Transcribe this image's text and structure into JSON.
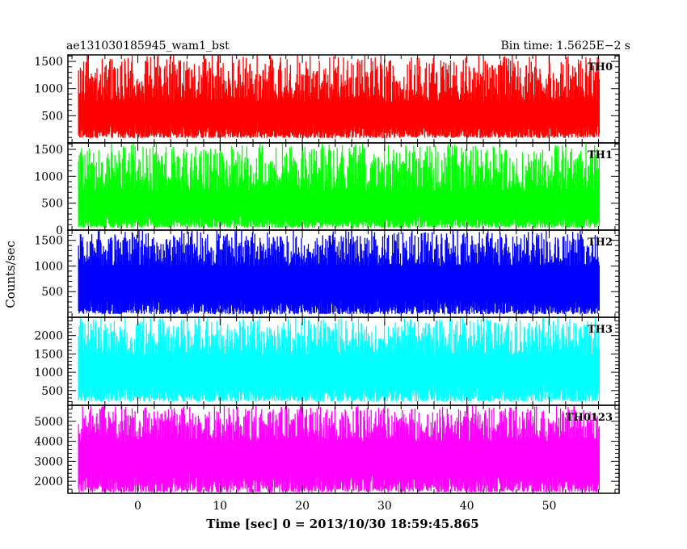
{
  "header": {
    "title": "ae131030185945_wam1_bst",
    "bin_time": "Bin time: 1.5625E−2 s"
  },
  "axes": {
    "ylabel": "Counts/sec",
    "xlabel": "Time [sec] 0 = 2013/10/30 18:59:45.865"
  },
  "chart_data": [
    {
      "type": "line",
      "name": "TH0",
      "color": "#ff0000",
      "xlim": [
        -8.5,
        58.5
      ],
      "ylim": [
        0,
        1620
      ],
      "yticks": [
        500,
        1000,
        1500
      ],
      "ytick_labels": [
        "500",
        "1000",
        "1500"
      ],
      "x_range": [
        -7.2,
        56.1
      ],
      "baseline_range": [
        90,
        380
      ],
      "peak_range": [
        760,
        1620
      ]
    },
    {
      "type": "line",
      "name": "TH1",
      "color": "#00ff00",
      "xlim": [
        -8.5,
        58.5
      ],
      "ylim": [
        0,
        1620
      ],
      "yticks": [
        0,
        500,
        1000,
        1500
      ],
      "ytick_labels": [
        "0",
        "500",
        "1000",
        "1500"
      ],
      "x_range": [
        -7.2,
        56.1
      ],
      "baseline_range": [
        40,
        320
      ],
      "peak_range": [
        720,
        1620
      ]
    },
    {
      "type": "line",
      "name": "TH2",
      "color": "#0000ff",
      "xlim": [
        -8.5,
        58.5
      ],
      "ylim": [
        0,
        1700
      ],
      "yticks": [
        500,
        1000,
        1500
      ],
      "ytick_labels": [
        "500",
        "1000",
        "1500"
      ],
      "x_range": [
        -7.2,
        56.1
      ],
      "baseline_range": [
        60,
        360
      ],
      "peak_range": [
        1000,
        1700
      ]
    },
    {
      "type": "line",
      "name": "TH3",
      "color": "#00ffff",
      "xlim": [
        -8.5,
        58.5
      ],
      "ylim": [
        100,
        2500
      ],
      "yticks": [
        500,
        1000,
        1500,
        2000
      ],
      "ytick_labels": [
        "500",
        "1000",
        "1500",
        "2000"
      ],
      "x_range": [
        -7.2,
        56.1
      ],
      "baseline_range": [
        200,
        700
      ],
      "peak_range": [
        1450,
        2500
      ]
    },
    {
      "type": "line",
      "name": "TH0123",
      "color": "#ff00ff",
      "xlim": [
        -8.5,
        58.5
      ],
      "ylim": [
        1400,
        5800
      ],
      "yticks": [
        2000,
        3000,
        4000,
        5000
      ],
      "ytick_labels": [
        "2000",
        "3000",
        "4000",
        "5000"
      ],
      "x_range": [
        -7.2,
        56.1
      ],
      "baseline_range": [
        1450,
        2500
      ],
      "peak_range": [
        4000,
        5800
      ]
    }
  ],
  "xticks": [
    0,
    10,
    20,
    30,
    40,
    50
  ],
  "xtick_labels": [
    "0",
    "10",
    "20",
    "30",
    "40",
    "50"
  ]
}
